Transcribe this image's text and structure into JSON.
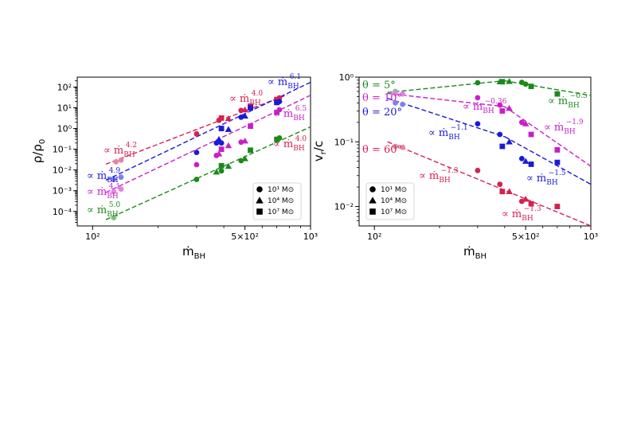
{
  "colors": {
    "red": "#d62050",
    "blue": "#1a1ad8",
    "magenta": "#c81fc8",
    "green": "#1a8a1a"
  },
  "chart_data": [
    {
      "type": "scatter",
      "xlabel": "ṁBH",
      "ylabel": "ρ/ρ0",
      "xscale": "log",
      "yscale": "log",
      "xlim": [
        85,
        1000
      ],
      "ylim": [
        2e-05,
        300
      ],
      "x_ticks": [
        {
          "value": 100,
          "label": "10²"
        },
        {
          "value": 500,
          "label": "5×10²"
        },
        {
          "value": 1000,
          "label": "10³"
        }
      ],
      "y_ticks": [
        {
          "value": 0.0001,
          "label": "10⁻⁴"
        },
        {
          "value": 0.001,
          "label": "10⁻³"
        },
        {
          "value": 0.01,
          "label": "10⁻²"
        },
        {
          "value": 0.1,
          "label": "10⁻¹"
        },
        {
          "value": 1,
          "label": "10⁰"
        },
        {
          "value": 10,
          "label": "10¹"
        },
        {
          "value": 100,
          "label": "10²"
        }
      ],
      "legend": {
        "position": "lower-right",
        "entries": [
          {
            "marker": "circle",
            "text": "10¹ M⊙"
          },
          {
            "marker": "triangle",
            "text": "10⁴ M⊙"
          },
          {
            "marker": "square",
            "text": "10⁷ M⊙"
          }
        ]
      },
      "series": [
        {
          "color": "red",
          "fit": {
            "x": [
              115,
              780
            ],
            "y": [
              0.019,
              42
            ]
          },
          "annotation": "∝ ṁBH",
          "exponent": "4.2",
          "annotation2": "∝ ṁBH",
          "exponent2": "4.0",
          "points": [
            {
              "x": 128,
              "y": 0.025,
              "m": "circle",
              "light": true
            },
            {
              "x": 135,
              "y": 0.03,
              "m": "circle",
              "light": true
            },
            {
              "x": 300,
              "y": 0.55,
              "m": "circle"
            },
            {
              "x": 380,
              "y": 2.5,
              "m": "circle"
            },
            {
              "x": 390,
              "y": 3.2,
              "m": "square"
            },
            {
              "x": 420,
              "y": 3.0,
              "m": "triangle"
            },
            {
              "x": 480,
              "y": 7.5,
              "m": "circle"
            },
            {
              "x": 500,
              "y": 8.0,
              "m": "triangle"
            },
            {
              "x": 530,
              "y": 12,
              "m": "square"
            },
            {
              "x": 700,
              "y": 25,
              "m": "square"
            },
            {
              "x": 720,
              "y": 30,
              "m": "circle"
            }
          ]
        },
        {
          "color": "blue",
          "fit": {
            "x": [
              115,
              1000
            ],
            "y": [
              0.0032,
              170
            ]
          },
          "annotation": "∝ ṁBH",
          "exponent": "4.9",
          "annotation2": "∝ ṁBH",
          "exponent2": "6.1",
          "points": [
            {
              "x": 125,
              "y": 0.0035,
              "m": "circle",
              "light": true
            },
            {
              "x": 135,
              "y": 0.0045,
              "m": "circle",
              "light": true
            },
            {
              "x": 300,
              "y": 0.07,
              "m": "circle"
            },
            {
              "x": 370,
              "y": 0.2,
              "m": "circle"
            },
            {
              "x": 380,
              "y": 0.3,
              "m": "triangle"
            },
            {
              "x": 390,
              "y": 0.2,
              "m": "circle"
            },
            {
              "x": 390,
              "y": 1.0,
              "m": "square"
            },
            {
              "x": 420,
              "y": 0.9,
              "m": "triangle"
            },
            {
              "x": 480,
              "y": 3.5,
              "m": "circle"
            },
            {
              "x": 500,
              "y": 4.0,
              "m": "triangle"
            },
            {
              "x": 530,
              "y": 10,
              "m": "square"
            },
            {
              "x": 700,
              "y": 18,
              "m": "square"
            },
            {
              "x": 720,
              "y": 20,
              "m": "circle"
            }
          ]
        },
        {
          "color": "magenta",
          "fit": {
            "x": [
              115,
              1000
            ],
            "y": [
              0.00082,
              40
            ]
          },
          "annotation": "∝ ṁBH",
          "exponent": "4.1",
          "annotation2": "∝ ṁBH",
          "exponent2": "6.5",
          "points": [
            {
              "x": 125,
              "y": 0.0009,
              "m": "circle",
              "light": true
            },
            {
              "x": 135,
              "y": 0.0012,
              "m": "circle",
              "light": true
            },
            {
              "x": 300,
              "y": 0.018,
              "m": "circle"
            },
            {
              "x": 370,
              "y": 0.05,
              "m": "circle"
            },
            {
              "x": 380,
              "y": 0.06,
              "m": "triangle"
            },
            {
              "x": 390,
              "y": 0.1,
              "m": "square"
            },
            {
              "x": 420,
              "y": 0.15,
              "m": "triangle"
            },
            {
              "x": 480,
              "y": 0.22,
              "m": "circle"
            },
            {
              "x": 500,
              "y": 0.25,
              "m": "triangle"
            },
            {
              "x": 530,
              "y": 1.3,
              "m": "square"
            },
            {
              "x": 700,
              "y": 6.0,
              "m": "square"
            },
            {
              "x": 720,
              "y": 8.0,
              "m": "circle"
            }
          ]
        },
        {
          "color": "green",
          "fit": {
            "x": [
              115,
              1000
            ],
            "y": [
              4e-05,
              1.2
            ]
          },
          "annotation": "∝ ṁBH",
          "exponent": "5.0",
          "annotation2": "∝ ṁBH",
          "exponent2": "4.7",
          "points": [
            {
              "x": 125,
              "y": 5e-05,
              "m": "circle",
              "light": true
            },
            {
              "x": 300,
              "y": 0.0035,
              "m": "circle"
            },
            {
              "x": 370,
              "y": 0.008,
              "m": "triangle"
            },
            {
              "x": 390,
              "y": 0.009,
              "m": "circle"
            },
            {
              "x": 390,
              "y": 0.016,
              "m": "square"
            },
            {
              "x": 420,
              "y": 0.015,
              "m": "triangle"
            },
            {
              "x": 480,
              "y": 0.028,
              "m": "circle"
            },
            {
              "x": 500,
              "y": 0.035,
              "m": "triangle"
            },
            {
              "x": 530,
              "y": 0.09,
              "m": "square"
            },
            {
              "x": 700,
              "y": 0.3,
              "m": "square"
            },
            {
              "x": 720,
              "y": 0.35,
              "m": "circle"
            }
          ]
        }
      ]
    },
    {
      "type": "scatter",
      "xlabel": "ṁBH",
      "ylabel": "vr/c",
      "xscale": "log",
      "yscale": "log",
      "xlim": [
        85,
        1000
      ],
      "ylim": [
        0.005,
        1.0
      ],
      "x_ticks": [
        {
          "value": 100,
          "label": "10²"
        },
        {
          "value": 500,
          "label": "5×10²"
        },
        {
          "value": 1000,
          "label": "10³"
        }
      ],
      "y_ticks": [
        {
          "value": 0.01,
          "label": "10⁻²"
        },
        {
          "value": 0.1,
          "label": "10⁻¹"
        },
        {
          "value": 1,
          "label": "10⁰"
        }
      ],
      "legend": {
        "position": "lower-left",
        "entries": [
          {
            "marker": "circle",
            "text": "10¹ M⊙"
          },
          {
            "marker": "triangle",
            "text": "10⁴ M⊙"
          },
          {
            "marker": "square",
            "text": "10⁷ M⊙"
          }
        ]
      },
      "series": [
        {
          "color": "green",
          "theta": "θ = 5°",
          "fit": [
            {
              "x": [
                115,
                400
              ],
              "y": [
                0.58,
                0.88
              ]
            },
            {
              "x": [
                400,
                1000
              ],
              "y": [
                0.88,
                0.52
              ]
            }
          ],
          "annotation": "∝ ṁBH",
          "exponent": "−0.5",
          "points": [
            {
              "x": 125,
              "y": 0.6,
              "m": "circle",
              "light": true
            },
            {
              "x": 300,
              "y": 0.82,
              "m": "circle"
            },
            {
              "x": 380,
              "y": 0.85,
              "m": "triangle"
            },
            {
              "x": 390,
              "y": 0.85,
              "m": "square"
            },
            {
              "x": 420,
              "y": 0.86,
              "m": "triangle"
            },
            {
              "x": 480,
              "y": 0.83,
              "m": "circle"
            },
            {
              "x": 500,
              "y": 0.78,
              "m": "circle"
            },
            {
              "x": 530,
              "y": 0.72,
              "m": "square"
            },
            {
              "x": 700,
              "y": 0.55,
              "m": "square"
            }
          ]
        },
        {
          "color": "magenta",
          "theta": "θ = 10°",
          "fit": [
            {
              "x": [
                115,
                400
              ],
              "y": [
                0.56,
                0.35
              ]
            },
            {
              "x": [
                400,
                1000
              ],
              "y": [
                0.35,
                0.042
              ]
            }
          ],
          "annotation": "∝ ṁBH",
          "exponent": "−0.36",
          "annotation2": "∝ ṁBH",
          "exponent2": "−1.9",
          "points": [
            {
              "x": 125,
              "y": 0.56,
              "m": "circle",
              "light": true
            },
            {
              "x": 135,
              "y": 0.55,
              "m": "circle",
              "light": true
            },
            {
              "x": 300,
              "y": 0.48,
              "m": "circle"
            },
            {
              "x": 380,
              "y": 0.37,
              "m": "circle"
            },
            {
              "x": 390,
              "y": 0.3,
              "m": "square"
            },
            {
              "x": 420,
              "y": 0.33,
              "m": "triangle"
            },
            {
              "x": 480,
              "y": 0.2,
              "m": "circle"
            },
            {
              "x": 500,
              "y": 0.19,
              "m": "triangle"
            },
            {
              "x": 530,
              "y": 0.13,
              "m": "square"
            },
            {
              "x": 700,
              "y": 0.075,
              "m": "square"
            }
          ]
        },
        {
          "color": "blue",
          "theta": "θ = 20°",
          "fit": [
            {
              "x": [
                115,
                400
              ],
              "y": [
                0.47,
                0.12
              ]
            },
            {
              "x": [
                400,
                1000
              ],
              "y": [
                0.12,
                0.022
              ]
            }
          ],
          "annotation": "∝ ṁBH",
          "exponent": "−1.1",
          "annotation2": "∝ ṁBH",
          "exponent2": "−1.5",
          "points": [
            {
              "x": 125,
              "y": 0.4,
              "m": "circle",
              "light": true
            },
            {
              "x": 135,
              "y": 0.38,
              "m": "circle",
              "light": true
            },
            {
              "x": 300,
              "y": 0.19,
              "m": "circle"
            },
            {
              "x": 380,
              "y": 0.13,
              "m": "circle"
            },
            {
              "x": 390,
              "y": 0.085,
              "m": "square"
            },
            {
              "x": 420,
              "y": 0.1,
              "m": "triangle"
            },
            {
              "x": 480,
              "y": 0.055,
              "m": "circle"
            },
            {
              "x": 500,
              "y": 0.05,
              "m": "triangle"
            },
            {
              "x": 530,
              "y": 0.045,
              "m": "square"
            },
            {
              "x": 700,
              "y": 0.048,
              "m": "square"
            }
          ]
        },
        {
          "color": "red",
          "theta": "θ = 60°",
          "fit": [
            {
              "x": [
                115,
                1000
              ],
              "y": [
                0.1,
                0.005
              ]
            }
          ],
          "annotation": "∝ ṁBH",
          "exponent": "−1.3",
          "annotation2": "∝ ṁBH",
          "exponent2": "−1.3",
          "points": [
            {
              "x": 125,
              "y": 0.085,
              "m": "circle",
              "light": true
            },
            {
              "x": 135,
              "y": 0.082,
              "m": "circle",
              "light": true
            },
            {
              "x": 300,
              "y": 0.036,
              "m": "circle"
            },
            {
              "x": 380,
              "y": 0.022,
              "m": "circle"
            },
            {
              "x": 390,
              "y": 0.017,
              "m": "square"
            },
            {
              "x": 420,
              "y": 0.017,
              "m": "triangle"
            },
            {
              "x": 480,
              "y": 0.012,
              "m": "circle"
            },
            {
              "x": 500,
              "y": 0.013,
              "m": "triangle"
            },
            {
              "x": 530,
              "y": 0.011,
              "m": "square"
            },
            {
              "x": 700,
              "y": 0.01,
              "m": "square"
            }
          ]
        }
      ]
    }
  ]
}
